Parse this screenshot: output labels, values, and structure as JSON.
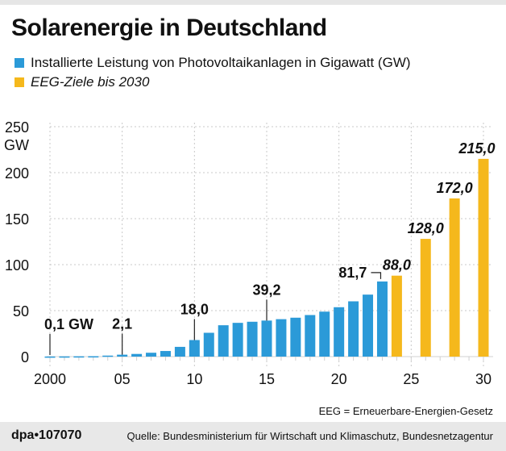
{
  "title": "Solarenergie in Deutschland",
  "legend": [
    {
      "label": "Installierte Leistung von Photovoltaikanlagen in Gigawatt (GW)",
      "color": "#2b9ad8"
    },
    {
      "label": "EEG-Ziele bis 2030",
      "color": "#f5b81c"
    }
  ],
  "footnote": "EEG = Erneuerbare-Energien-Gesetz",
  "footer": {
    "brand": "dpa•107070",
    "source": "Quelle: Bundesministerium für Wirtschaft und Klimaschutz, Bundesnetzagentur"
  },
  "chart_data": {
    "type": "bar",
    "title": "Solarenergie in Deutschland",
    "xlabel": "",
    "ylabel": "GW",
    "ylim": [
      0,
      250
    ],
    "yticks": [
      0,
      50,
      100,
      150,
      200,
      250
    ],
    "ytick_labels": [
      "0",
      "50",
      "100",
      "150",
      "200",
      "250"
    ],
    "y_unit_label": "GW",
    "xlim": [
      2000,
      2030
    ],
    "xticks": [
      2000,
      2005,
      2010,
      2015,
      2020,
      2025,
      2030
    ],
    "xtick_labels": [
      "2000",
      "05",
      "10",
      "15",
      "20",
      "25",
      "30"
    ],
    "grid": true,
    "legend_position": "top-left",
    "series": [
      {
        "name": "Installierte Leistung von Photovoltaikanlagen in Gigawatt (GW)",
        "color": "#2b9ad8",
        "x": [
          2000,
          2001,
          2002,
          2003,
          2004,
          2005,
          2006,
          2007,
          2008,
          2009,
          2010,
          2011,
          2012,
          2013,
          2014,
          2015,
          2016,
          2017,
          2018,
          2019,
          2020,
          2021,
          2022,
          2023
        ],
        "values": [
          0.1,
          0.2,
          0.3,
          0.4,
          1.1,
          2.1,
          2.9,
          4.2,
          6.1,
          10.6,
          18.0,
          25.9,
          34.1,
          36.7,
          37.9,
          39.2,
          40.7,
          42.3,
          45.2,
          48.9,
          53.7,
          60.1,
          67.4,
          81.7
        ]
      },
      {
        "name": "EEG-Ziele bis 2030",
        "color": "#f5b81c",
        "x": [
          2024,
          2026,
          2028,
          2030
        ],
        "values": [
          88.0,
          128.0,
          172.0,
          215.0
        ]
      }
    ],
    "annotations": [
      {
        "x": 2000,
        "value": 0.1,
        "text": "0,1 GW",
        "style": "bold",
        "leader": true
      },
      {
        "x": 2005,
        "value": 2.1,
        "text": "2,1",
        "style": "bold",
        "leader": true
      },
      {
        "x": 2010,
        "value": 18.0,
        "text": "18,0",
        "style": "bold",
        "leader": true
      },
      {
        "x": 2015,
        "value": 39.2,
        "text": "39,2",
        "style": "bold",
        "leader": true
      },
      {
        "x": 2023,
        "value": 81.7,
        "text": "81,7",
        "style": "bold",
        "leader": "bracket"
      },
      {
        "x": 2024,
        "value": 88.0,
        "text": "88,0",
        "style": "bold-italic",
        "leader": false
      },
      {
        "x": 2026,
        "value": 128.0,
        "text": "128,0",
        "style": "bold-italic",
        "leader": false
      },
      {
        "x": 2028,
        "value": 172.0,
        "text": "172,0",
        "style": "bold-italic",
        "leader": false
      },
      {
        "x": 2030,
        "value": 215.0,
        "text": "215,0",
        "style": "bold-italic",
        "leader": false
      }
    ]
  }
}
